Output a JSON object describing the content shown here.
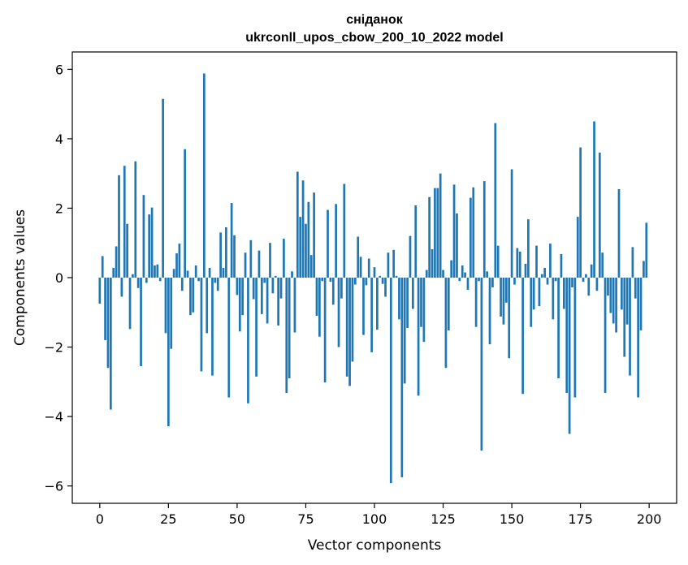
{
  "chart_data": {
    "type": "bar",
    "title": "сніданок",
    "subtitle": "ukrconll_upos_cbow_200_10_2022 model",
    "xlabel": "Vector components",
    "ylabel": "Components values",
    "xlim": [
      -10,
      210
    ],
    "ylim": [
      -6.5,
      6.5
    ],
    "xticks": [
      0,
      25,
      50,
      75,
      100,
      125,
      150,
      175,
      200
    ],
    "yticks": [
      -6,
      -4,
      -2,
      0,
      2,
      4,
      6
    ],
    "ytick_labels": [
      "−6",
      "−4",
      "−2",
      "0",
      "2",
      "4",
      "6"
    ],
    "grid": false,
    "legend": "none",
    "color": "#1f77b4",
    "x": [
      0,
      1,
      2,
      3,
      4,
      5,
      6,
      7,
      8,
      9,
      10,
      11,
      12,
      13,
      14,
      15,
      16,
      17,
      18,
      19,
      20,
      21,
      22,
      23,
      24,
      25,
      26,
      27,
      28,
      29,
      30,
      31,
      32,
      33,
      34,
      35,
      36,
      37,
      38,
      39,
      40,
      41,
      42,
      43,
      44,
      45,
      46,
      47,
      48,
      49,
      50,
      51,
      52,
      53,
      54,
      55,
      56,
      57,
      58,
      59,
      60,
      61,
      62,
      63,
      64,
      65,
      66,
      67,
      68,
      69,
      70,
      71,
      72,
      73,
      74,
      75,
      76,
      77,
      78,
      79,
      80,
      81,
      82,
      83,
      84,
      85,
      86,
      87,
      88,
      89,
      90,
      91,
      92,
      93,
      94,
      95,
      96,
      97,
      98,
      99,
      100,
      101,
      102,
      103,
      104,
      105,
      106,
      107,
      108,
      109,
      110,
      111,
      112,
      113,
      114,
      115,
      116,
      117,
      118,
      119,
      120,
      121,
      122,
      123,
      124,
      125,
      126,
      127,
      128,
      129,
      130,
      131,
      132,
      133,
      134,
      135,
      136,
      137,
      138,
      139,
      140,
      141,
      142,
      143,
      144,
      145,
      146,
      147,
      148,
      149,
      150,
      151,
      152,
      153,
      154,
      155,
      156,
      157,
      158,
      159,
      160,
      161,
      162,
      163,
      164,
      165,
      166,
      167,
      168,
      169,
      170,
      171,
      172,
      173,
      174,
      175,
      176,
      177,
      178,
      179,
      180,
      181,
      182,
      183,
      184,
      185,
      186,
      187,
      188,
      189,
      190,
      191,
      192,
      193,
      194,
      195,
      196,
      197,
      198,
      199
    ],
    "values": [
      -0.75,
      0.62,
      -1.8,
      -2.6,
      -3.8,
      0.28,
      0.9,
      2.95,
      -0.55,
      3.22,
      1.55,
      -1.48,
      0.1,
      3.35,
      -0.3,
      -2.55,
      2.38,
      -0.15,
      1.82,
      2.02,
      0.35,
      0.38,
      -0.1,
      5.15,
      -1.6,
      -4.28,
      -2.05,
      0.25,
      0.7,
      0.98,
      -0.38,
      3.7,
      0.2,
      -1.08,
      -1.0,
      0.35,
      -0.1,
      -2.7,
      5.88,
      -1.6,
      0.28,
      -2.82,
      -0.15,
      -0.38,
      1.3,
      0.28,
      1.45,
      -3.45,
      2.15,
      1.22,
      -0.5,
      -1.55,
      -1.08,
      0.72,
      -3.62,
      1.08,
      -0.62,
      -2.85,
      0.78,
      -1.05,
      -0.15,
      -1.32,
      1.0,
      -0.45,
      0.05,
      -1.38,
      -0.6,
      1.12,
      -3.32,
      -2.9,
      0.18,
      -1.58,
      3.05,
      1.75,
      2.8,
      1.55,
      2.18,
      0.65,
      2.45,
      -1.1,
      -1.7,
      -0.1,
      -3.02,
      1.95,
      -0.12,
      -0.78,
      2.12,
      -2.0,
      -0.6,
      2.7,
      -2.85,
      -3.12,
      -2.42,
      -0.2,
      1.18,
      0.6,
      -1.65,
      -0.22,
      0.55,
      -2.15,
      0.3,
      -1.5,
      0.05,
      -0.18,
      -0.55,
      0.72,
      -5.92,
      0.8,
      0.05,
      -1.2,
      -5.75,
      -3.05,
      -1.45,
      1.2,
      -0.9,
      2.08,
      -3.4,
      -1.42,
      -1.85,
      0.22,
      2.32,
      0.82,
      2.58,
      2.58,
      3.0,
      0.22,
      -2.6,
      -1.52,
      0.5,
      2.68,
      1.85,
      -0.1,
      0.35,
      0.15,
      -0.35,
      2.3,
      2.6,
      -1.42,
      -0.1,
      -4.98,
      2.78,
      0.18,
      -1.92,
      -0.28,
      4.45,
      0.92,
      -1.12,
      -1.35,
      -0.72,
      -2.32,
      3.12,
      -0.2,
      0.85,
      0.75,
      -3.35,
      0.4,
      1.68,
      -1.42,
      -0.92,
      0.92,
      -0.82,
      0.1,
      0.28,
      -0.2,
      0.98,
      -1.2,
      -0.1,
      -2.9,
      0.68,
      -0.9,
      -3.32,
      -4.5,
      -0.28,
      -3.45,
      1.75,
      3.75,
      -0.12,
      0.1,
      -0.52,
      0.38,
      4.5,
      -0.38,
      3.6,
      0.72,
      -3.32,
      -0.52,
      -1.02,
      -1.32,
      -1.58,
      2.55,
      -0.92,
      -2.28,
      -1.35,
      -2.82,
      0.88,
      -0.6,
      -3.45,
      -1.52,
      0.48,
      1.58
    ]
  }
}
